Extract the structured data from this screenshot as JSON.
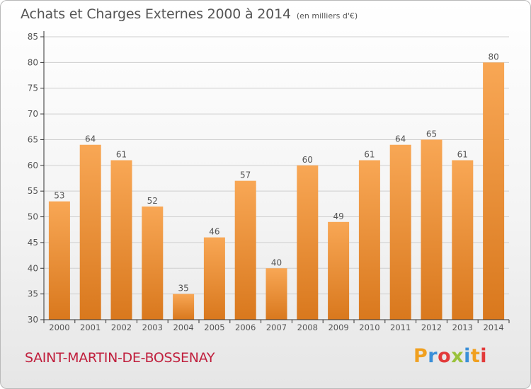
{
  "title": "Achats et Charges Externes 2000 à 2014",
  "unit": "(en milliers d'€)",
  "commune": "SAINT-MARTIN-DE-BOSSENAY",
  "logo": {
    "text": "Proxiti",
    "colors": [
      "#f0a020",
      "#3a8fd8",
      "#e23a3a",
      "#9ac23c",
      "#3a8fd8",
      "#f0a020",
      "#e23a3a"
    ]
  },
  "colors": {
    "bar_light": "#f8a755",
    "bar_dark": "#d9781d",
    "axis": "#333333",
    "grid": "#cfcfcf",
    "text": "#555555"
  },
  "chart_data": {
    "type": "bar",
    "title": "Achats et Charges Externes 2000 à 2014",
    "xlabel": "",
    "ylabel": "",
    "categories": [
      "2000",
      "2001",
      "2002",
      "2003",
      "2004",
      "2005",
      "2006",
      "2007",
      "2008",
      "2009",
      "2010",
      "2011",
      "2012",
      "2013",
      "2014"
    ],
    "values": [
      53,
      64,
      61,
      52,
      35,
      46,
      57,
      40,
      60,
      49,
      61,
      64,
      65,
      61,
      80
    ],
    "ylim": [
      30,
      85
    ],
    "yticks": [
      30,
      35,
      40,
      45,
      50,
      55,
      60,
      65,
      70,
      75,
      80,
      85
    ],
    "grid": true,
    "data_labels": true
  }
}
